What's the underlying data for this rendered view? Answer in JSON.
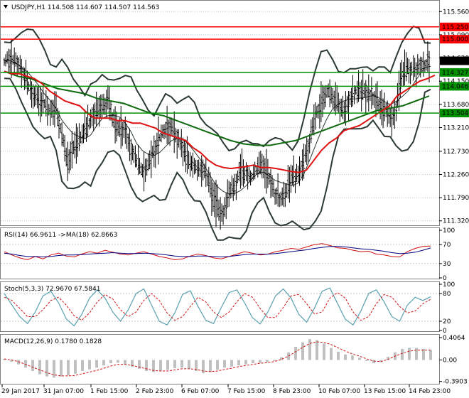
{
  "window": {
    "title": "USDJPY,H1",
    "ohlc": [
      "114.508",
      "114.607",
      "114.507",
      "114.563"
    ]
  },
  "colors": {
    "background": "#ffffff",
    "grid": "#c8c8c8",
    "price": "#000000",
    "band": "#2b3a33",
    "ma_red": "#e01010",
    "ma_green": "#106a10",
    "level_red": "#ff0000",
    "level_green": "#009000",
    "current_tag": "#000000",
    "rsi": "#d01010",
    "rsi_ma": "#000080",
    "stoch_main": "#5aa0b0",
    "stoch_signal": "#d01010",
    "macd_hist": "#c0c0c0",
    "macd_signal": "#d01010"
  },
  "chart_data": [
    {
      "type": "line",
      "name": "price",
      "title": "USDJPY,H1",
      "ylim": [
        111.23,
        115.78
      ],
      "y_ticks": [
        "115.560",
        "115.090",
        "114.620",
        "114.150",
        "113.680",
        "113.210",
        "112.730",
        "112.260",
        "111.790",
        "111.320"
      ],
      "x_ticks": [
        "29 Jan 2017",
        "31 Jan 07:00",
        "1 Feb 15:00",
        "2 Feb 23:00",
        "6 Feb 07:00",
        "7 Feb 15:00",
        "8 Feb 23:00",
        "10 Feb 07:00",
        "13 Feb 15:00",
        "14 Feb 23:00"
      ],
      "levels": [
        {
          "label": "115.250",
          "value": 115.25,
          "color": "red"
        },
        {
          "label": "115.000",
          "value": 115.0,
          "color": "red"
        },
        {
          "label": "114.327",
          "value": 114.327,
          "color": "green"
        },
        {
          "label": "114.046",
          "value": 114.046,
          "color": "green"
        },
        {
          "label": "113.504",
          "value": 113.504,
          "color": "green"
        }
      ],
      "current": {
        "label": "114.563",
        "value": 114.563
      },
      "close_series": [
        114.55,
        114.6,
        114.55,
        114.35,
        114.1,
        113.9,
        113.75,
        113.7,
        113.5,
        113.6,
        113.1,
        112.5,
        112.85,
        112.95,
        113.15,
        113.35,
        113.55,
        113.6,
        113.75,
        113.3,
        113.2,
        113.15,
        112.8,
        112.55,
        112.3,
        112.45,
        112.75,
        113.0,
        113.2,
        113.25,
        113.0,
        112.8,
        112.55,
        112.4,
        112.35,
        112.3,
        111.9,
        111.6,
        111.5,
        111.85,
        112.05,
        112.35,
        112.25,
        112.2,
        112.4,
        112.45,
        112.2,
        111.85,
        111.75,
        111.95,
        112.2,
        112.25,
        112.5,
        112.95,
        113.45,
        113.7,
        113.95,
        113.8,
        113.7,
        113.55,
        113.8,
        113.95,
        113.95,
        113.9,
        113.85,
        113.7,
        113.55,
        113.45,
        113.6,
        114.3,
        114.4,
        114.35,
        114.45,
        114.5,
        114.56
      ],
      "ma_red_series": [
        114.35,
        114.3,
        114.3,
        114.25,
        114.2,
        114.1,
        113.95,
        113.85,
        113.75,
        113.7,
        113.65,
        113.5,
        113.4,
        113.4,
        113.4,
        113.35,
        113.35,
        113.3,
        113.3,
        113.25,
        113.2,
        113.1,
        113.05,
        113.0,
        112.95,
        112.8,
        112.7,
        112.55,
        112.45,
        112.4,
        112.38,
        112.4,
        112.42,
        112.45,
        112.4,
        112.4,
        112.38,
        112.35,
        112.32,
        112.3,
        112.35,
        112.55,
        112.75,
        112.9,
        113.0,
        113.15,
        113.2,
        113.25,
        113.35,
        113.45,
        113.55,
        113.65,
        113.85,
        113.95,
        114.05,
        114.15,
        114.2,
        114.27
      ],
      "ma_green_series": [
        114.35,
        114.25,
        114.2,
        114.1,
        114.0,
        113.95,
        113.9,
        113.8,
        113.75,
        113.7,
        113.6,
        113.5,
        113.45,
        113.35,
        113.25,
        113.15,
        113.05,
        112.95,
        112.88,
        112.85,
        112.85,
        112.9,
        112.95,
        113.05,
        113.15,
        113.25,
        113.35,
        113.45,
        113.55,
        113.6,
        113.65,
        113.75,
        113.85
      ]
    },
    {
      "type": "line",
      "name": "rsi",
      "title": "RSI(14) 66.9611  ->MA(18) 62.8663",
      "ylim": [
        0,
        100
      ],
      "y_ticks": [
        "100",
        "70",
        "30",
        "0"
      ],
      "rsi_series": [
        55,
        48,
        42,
        38,
        45,
        40,
        48,
        52,
        46,
        44,
        50,
        55,
        52,
        58,
        54,
        50,
        48,
        52,
        55,
        50,
        45,
        42,
        38,
        40,
        46,
        50,
        47,
        42,
        40,
        45,
        50,
        55,
        52,
        48,
        50,
        55,
        58,
        62,
        60,
        65,
        70,
        72,
        68,
        63,
        62,
        58,
        55,
        56,
        50,
        48,
        45,
        44,
        55,
        62,
        66,
        67
      ],
      "rsi_ma_series": [
        52,
        50,
        47,
        45,
        45,
        44,
        45,
        47,
        48,
        48,
        49,
        50,
        51,
        52,
        53,
        52,
        51,
        51,
        52,
        51,
        50,
        48,
        46,
        45,
        45,
        46,
        46,
        45,
        44,
        45,
        47,
        49,
        50,
        50,
        50,
        51,
        53,
        55,
        57,
        59,
        62,
        64,
        66,
        66,
        65,
        63,
        61,
        60,
        58,
        56,
        53,
        51,
        52,
        54,
        58,
        62.9
      ]
    },
    {
      "type": "line",
      "name": "stochastic",
      "title": "Stoch(5,3,3) 72.9670  67.5841",
      "ylim": [
        0,
        100
      ],
      "y_ticks": [
        "100",
        "80",
        "20",
        "0"
      ],
      "stoch_main": [
        80,
        55,
        30,
        15,
        40,
        75,
        85,
        60,
        25,
        10,
        35,
        70,
        88,
        70,
        40,
        20,
        45,
        80,
        90,
        55,
        20,
        12,
        38,
        78,
        86,
        52,
        22,
        15,
        50,
        82,
        88,
        60,
        28,
        14,
        40,
        75,
        90,
        70,
        35,
        18,
        48,
        85,
        92,
        58,
        24,
        12,
        42,
        80,
        88,
        62,
        30,
        20,
        55,
        72,
        65,
        73
      ],
      "stoch_signal": [
        72,
        65,
        48,
        30,
        30,
        45,
        65,
        72,
        55,
        32,
        22,
        38,
        62,
        78,
        68,
        45,
        30,
        40,
        65,
        80,
        65,
        38,
        22,
        30,
        52,
        72,
        62,
        40,
        28,
        40,
        62,
        80,
        72,
        48,
        28,
        28,
        50,
        75,
        78,
        58,
        36,
        40,
        70,
        82,
        70,
        40,
        22,
        30,
        58,
        78,
        72,
        52,
        38,
        42,
        58,
        67.6
      ]
    },
    {
      "type": "bar",
      "name": "macd",
      "title": "MACD(12,26,9) 0.1780 0.1828",
      "ylim": [
        -0.42,
        0.42
      ],
      "y_ticks": [
        "0.4064",
        "0.00",
        "-0.3903"
      ],
      "hist": [
        0.02,
        -0.03,
        -0.08,
        -0.14,
        -0.2,
        -0.26,
        -0.3,
        -0.32,
        -0.3,
        -0.28,
        -0.25,
        -0.2,
        -0.17,
        -0.14,
        -0.1,
        -0.06,
        -0.05,
        -0.08,
        -0.12,
        -0.16,
        -0.2,
        -0.22,
        -0.2,
        -0.18,
        -0.15,
        -0.14,
        -0.16,
        -0.2,
        -0.24,
        -0.22,
        -0.18,
        -0.14,
        -0.12,
        -0.1,
        -0.08,
        -0.06,
        -0.05,
        -0.04,
        -0.02,
        0.05,
        0.14,
        0.24,
        0.32,
        0.38,
        0.36,
        0.3,
        0.22,
        0.15,
        0.1,
        0.08,
        0.04,
        -0.02,
        -0.06,
        -0.04,
        0.06,
        0.14,
        0.2,
        0.22,
        0.22,
        0.2,
        0.18
      ],
      "signal": [
        0.02,
        0.0,
        -0.03,
        -0.08,
        -0.13,
        -0.18,
        -0.23,
        -0.27,
        -0.29,
        -0.29,
        -0.28,
        -0.25,
        -0.22,
        -0.19,
        -0.15,
        -0.11,
        -0.08,
        -0.08,
        -0.1,
        -0.13,
        -0.16,
        -0.19,
        -0.2,
        -0.2,
        -0.18,
        -0.16,
        -0.16,
        -0.17,
        -0.2,
        -0.21,
        -0.2,
        -0.17,
        -0.15,
        -0.12,
        -0.1,
        -0.08,
        -0.06,
        -0.05,
        -0.03,
        0.01,
        0.07,
        0.15,
        0.23,
        0.3,
        0.33,
        0.32,
        0.28,
        0.22,
        0.16,
        0.11,
        0.07,
        0.02,
        -0.02,
        -0.03,
        0.01,
        0.07,
        0.12,
        0.16,
        0.18,
        0.18,
        0.18
      ]
    }
  ]
}
